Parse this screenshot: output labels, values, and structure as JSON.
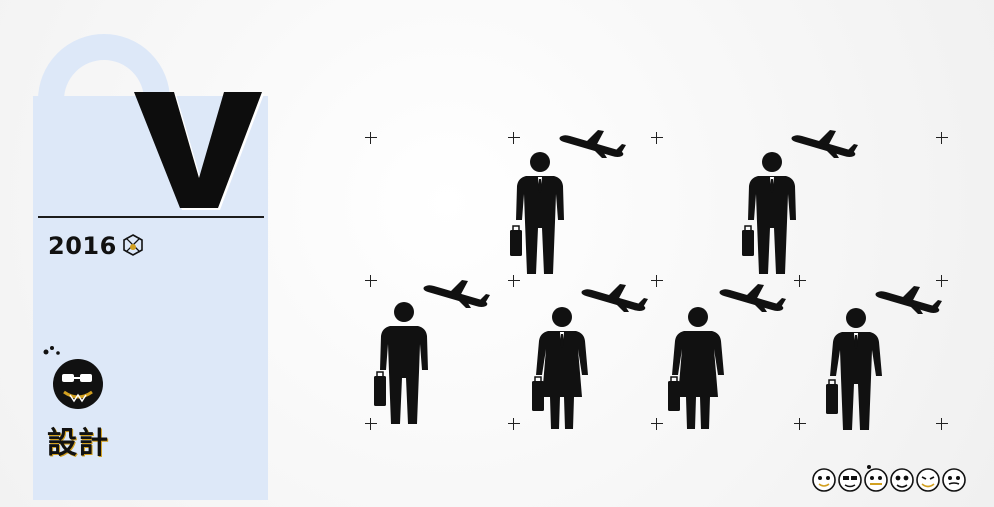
{
  "header": {
    "letter": "V"
  },
  "side": {
    "year": "2016",
    "year_icon": "geometric-face-icon",
    "studio_label": "設計",
    "studio_icon": "bearded-face-logo-icon"
  },
  "illustration": {
    "icons": [
      "airplane-icon",
      "businessman-icon",
      "businesswoman-icon",
      "woman-icon",
      "briefcase-icon",
      "crosshair-plus-icon"
    ],
    "footer_icons": [
      "face-badge-icon",
      "face-badge-icon",
      "face-badge-icon",
      "face-badge-icon",
      "face-badge-icon",
      "face-badge-icon"
    ]
  },
  "colors": {
    "panel": "#dde8f8",
    "ink": "#111111",
    "accent": "#d2a020"
  }
}
